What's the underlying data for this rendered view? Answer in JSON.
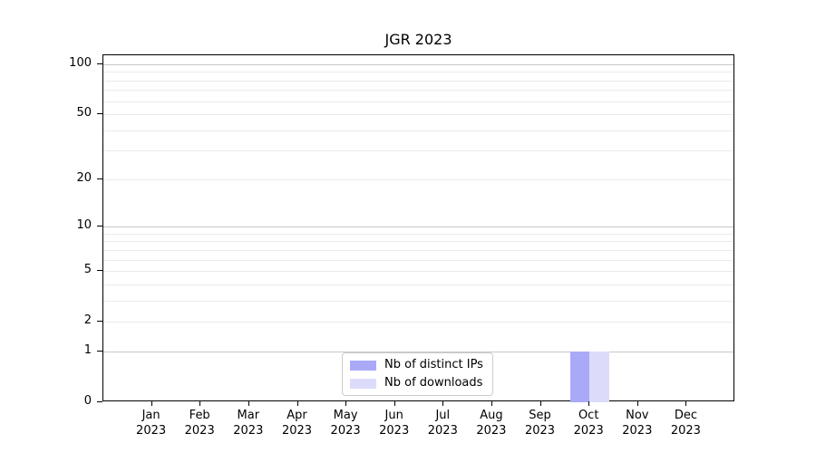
{
  "title": "JGR 2023",
  "colors": {
    "distinct_ips": "#a9a9f8",
    "downloads": "#dcdcfa",
    "grid_major": "#c8c8c8",
    "grid_minor": "#eaeaea",
    "axis": "#000000",
    "legend_border": "#cccccc",
    "background": "#ffffff"
  },
  "legend": {
    "items": [
      {
        "label": "Nb of distinct IPs",
        "color": "#a9a9f8"
      },
      {
        "label": "Nb of downloads",
        "color": "#dcdcfa"
      }
    ]
  },
  "chart_data": {
    "type": "bar",
    "title": "JGR 2023",
    "categories": [
      "Jan 2023",
      "Feb 2023",
      "Mar 2023",
      "Apr 2023",
      "May 2023",
      "Jun 2023",
      "Jul 2023",
      "Aug 2023",
      "Sep 2023",
      "Oct 2023",
      "Nov 2023",
      "Dec 2023"
    ],
    "x_tick_line1": [
      "Jan",
      "Feb",
      "Mar",
      "Apr",
      "May",
      "Jun",
      "Jul",
      "Aug",
      "Sep",
      "Oct",
      "Nov",
      "Dec"
    ],
    "x_tick_line2": "2023",
    "series": [
      {
        "name": "Nb of distinct IPs",
        "color": "#a9a9f8",
        "values": [
          0,
          0,
          0,
          0,
          0,
          0,
          0,
          0,
          0,
          1,
          0,
          0
        ]
      },
      {
        "name": "Nb of downloads",
        "color": "#dcdcfa",
        "values": [
          0,
          0,
          0,
          0,
          0,
          0,
          0,
          0,
          0,
          1,
          0,
          0
        ]
      }
    ],
    "yscale": "log1p",
    "ylim": [
      0,
      113
    ],
    "ytick_labels": [
      0,
      1,
      2,
      5,
      10,
      20,
      50,
      100
    ],
    "grid_major_values": [
      1,
      10,
      100
    ],
    "grid_minor_values": [
      2,
      3,
      4,
      5,
      6,
      7,
      8,
      9,
      20,
      30,
      40,
      50,
      60,
      70,
      80,
      90
    ],
    "grid": "horizontal",
    "legend_position": "lower center",
    "bar_group_width_fraction": 0.8
  }
}
